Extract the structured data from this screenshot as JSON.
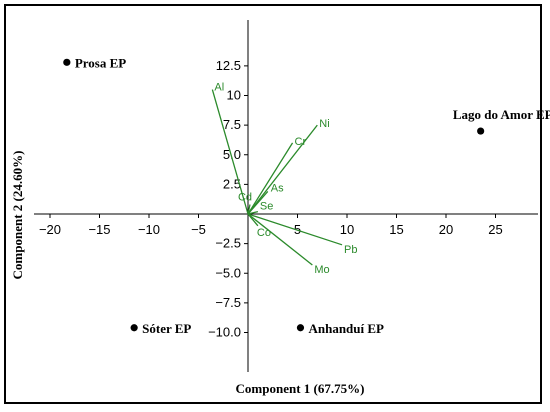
{
  "chart_data": {
    "type": "scatter",
    "subtype": "pca-biplot",
    "xlabel": "Component 1 (67.75%)",
    "ylabel": "Component 2 (24.60%)",
    "xlim": [
      -21,
      31
    ],
    "ylim": [
      -10.6,
      13
    ],
    "x_ticks": [
      -20,
      -15,
      -10,
      -5,
      5,
      10,
      15,
      20,
      25
    ],
    "y_ticks": [
      12.5,
      10,
      7.5,
      5.0,
      2.5,
      -2.5,
      -5.0,
      -7.5,
      -10.0
    ],
    "x_tick_labels": [
      "−20",
      "−15",
      "−10",
      "−5",
      "5",
      "10",
      "15",
      "20",
      "25"
    ],
    "y_tick_labels": [
      "12.5",
      "10",
      "7.5",
      "5.0",
      "2.5",
      "−2.5",
      "−5.0",
      "−7.5",
      "−10.0"
    ],
    "points": [
      {
        "label": "Prosa EP",
        "x": -18.3,
        "y": 12.8
      },
      {
        "label": "Lago do Amor EP",
        "x": 23.5,
        "y": 7.0
      },
      {
        "label": "Sóter EP",
        "x": -11.5,
        "y": -9.6
      },
      {
        "label": "Anhanduí EP",
        "x": 5.3,
        "y": -9.6
      }
    ],
    "loadings": [
      {
        "label": "Al",
        "x": -3.6,
        "y": 10.5
      },
      {
        "label": "Ni",
        "x": 7.0,
        "y": 7.5
      },
      {
        "label": "Cr",
        "x": 4.5,
        "y": 6.0
      },
      {
        "label": "As",
        "x": 2.0,
        "y": 1.9
      },
      {
        "label": "Cd",
        "x": 0.2,
        "y": 0.8
      },
      {
        "label": "Se",
        "x": 1.0,
        "y": 0.2
      },
      {
        "label": "Co",
        "x": 1.0,
        "y": -1.0
      },
      {
        "label": "Pb",
        "x": 9.5,
        "y": -2.6
      },
      {
        "label": "Mo",
        "x": 6.5,
        "y": -4.3
      }
    ],
    "colors": {
      "loadings": "#2b8a2b",
      "points": "#000000"
    },
    "grid": false
  }
}
